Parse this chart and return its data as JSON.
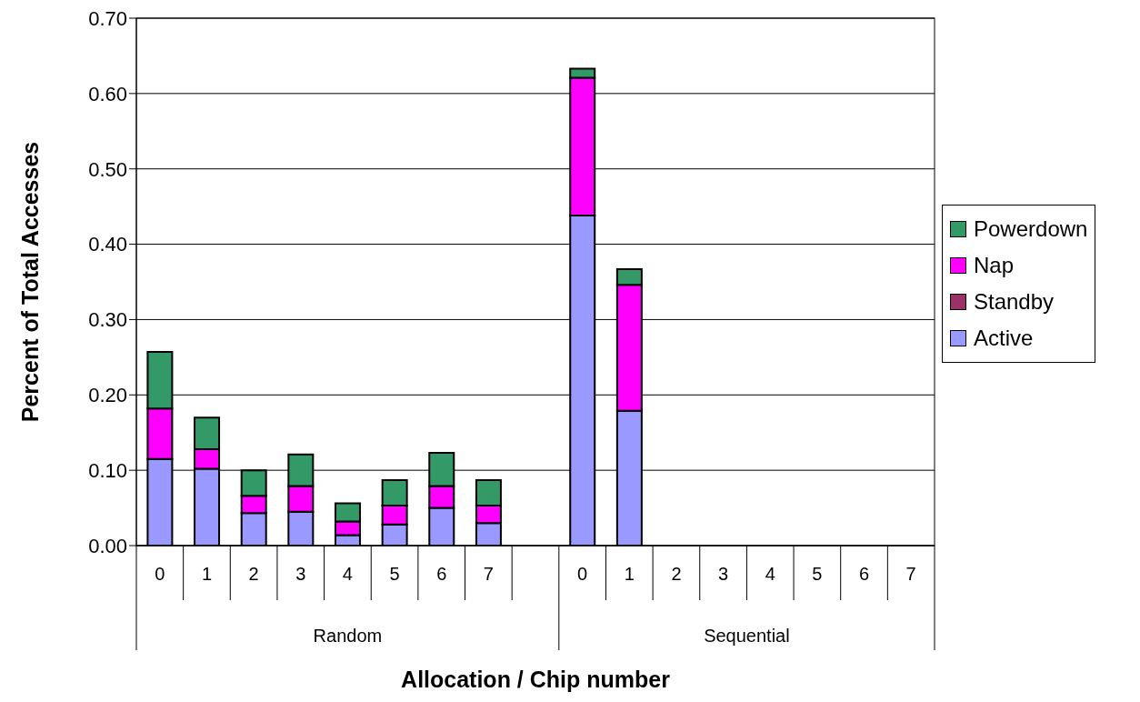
{
  "chart_data": {
    "type": "bar",
    "stacked": true,
    "xlabel": "Allocation / Chip number",
    "ylabel": "Percent of Total Accesses",
    "categories": [
      "0",
      "1",
      "2",
      "3",
      "4",
      "5",
      "6",
      "7",
      null,
      "0",
      "1",
      "2",
      "3",
      "4",
      "5",
      "6",
      "7"
    ],
    "annotations": [
      "Random",
      "Sequential"
    ],
    "series": [
      {
        "name": "Active",
        "color": "#9999ff",
        "values": [
          0.115,
          0.102,
          0.043,
          0.045,
          0.014,
          0.028,
          0.05,
          0.03,
          null,
          0.438,
          0.179,
          0,
          0,
          0,
          0,
          0,
          0
        ]
      },
      {
        "name": "Standby",
        "color": "#993366",
        "values": [
          0,
          0,
          0,
          0,
          0,
          0,
          0,
          0,
          null,
          0,
          0,
          0,
          0,
          0,
          0,
          0,
          0
        ]
      },
      {
        "name": "Nap",
        "color": "#ff00ff",
        "values": [
          0.067,
          0.026,
          0.023,
          0.034,
          0.018,
          0.025,
          0.029,
          0.023,
          null,
          0.183,
          0.167,
          0,
          0,
          0,
          0,
          0,
          0
        ]
      },
      {
        "name": "Powerdown",
        "color": "#339966",
        "values": [
          0.075,
          0.042,
          0.034,
          0.042,
          0.024,
          0.034,
          0.044,
          0.034,
          null,
          0.012,
          0.021,
          0,
          0,
          0,
          0,
          0,
          0
        ]
      }
    ],
    "ylim": [
      0,
      0.7
    ],
    "yticks": [
      {
        "value": 0,
        "label": "0.00"
      },
      {
        "value": 0.1,
        "label": "0.10"
      },
      {
        "value": 0.2,
        "label": "0.20"
      },
      {
        "value": 0.3,
        "label": "0.30"
      },
      {
        "value": 0.4,
        "label": "0.40"
      },
      {
        "value": 0.5,
        "label": "0.50"
      },
      {
        "value": 0.6,
        "label": "0.60"
      },
      {
        "value": 0.7,
        "label": "0.70"
      }
    ],
    "grid": "y",
    "legend": "right"
  }
}
